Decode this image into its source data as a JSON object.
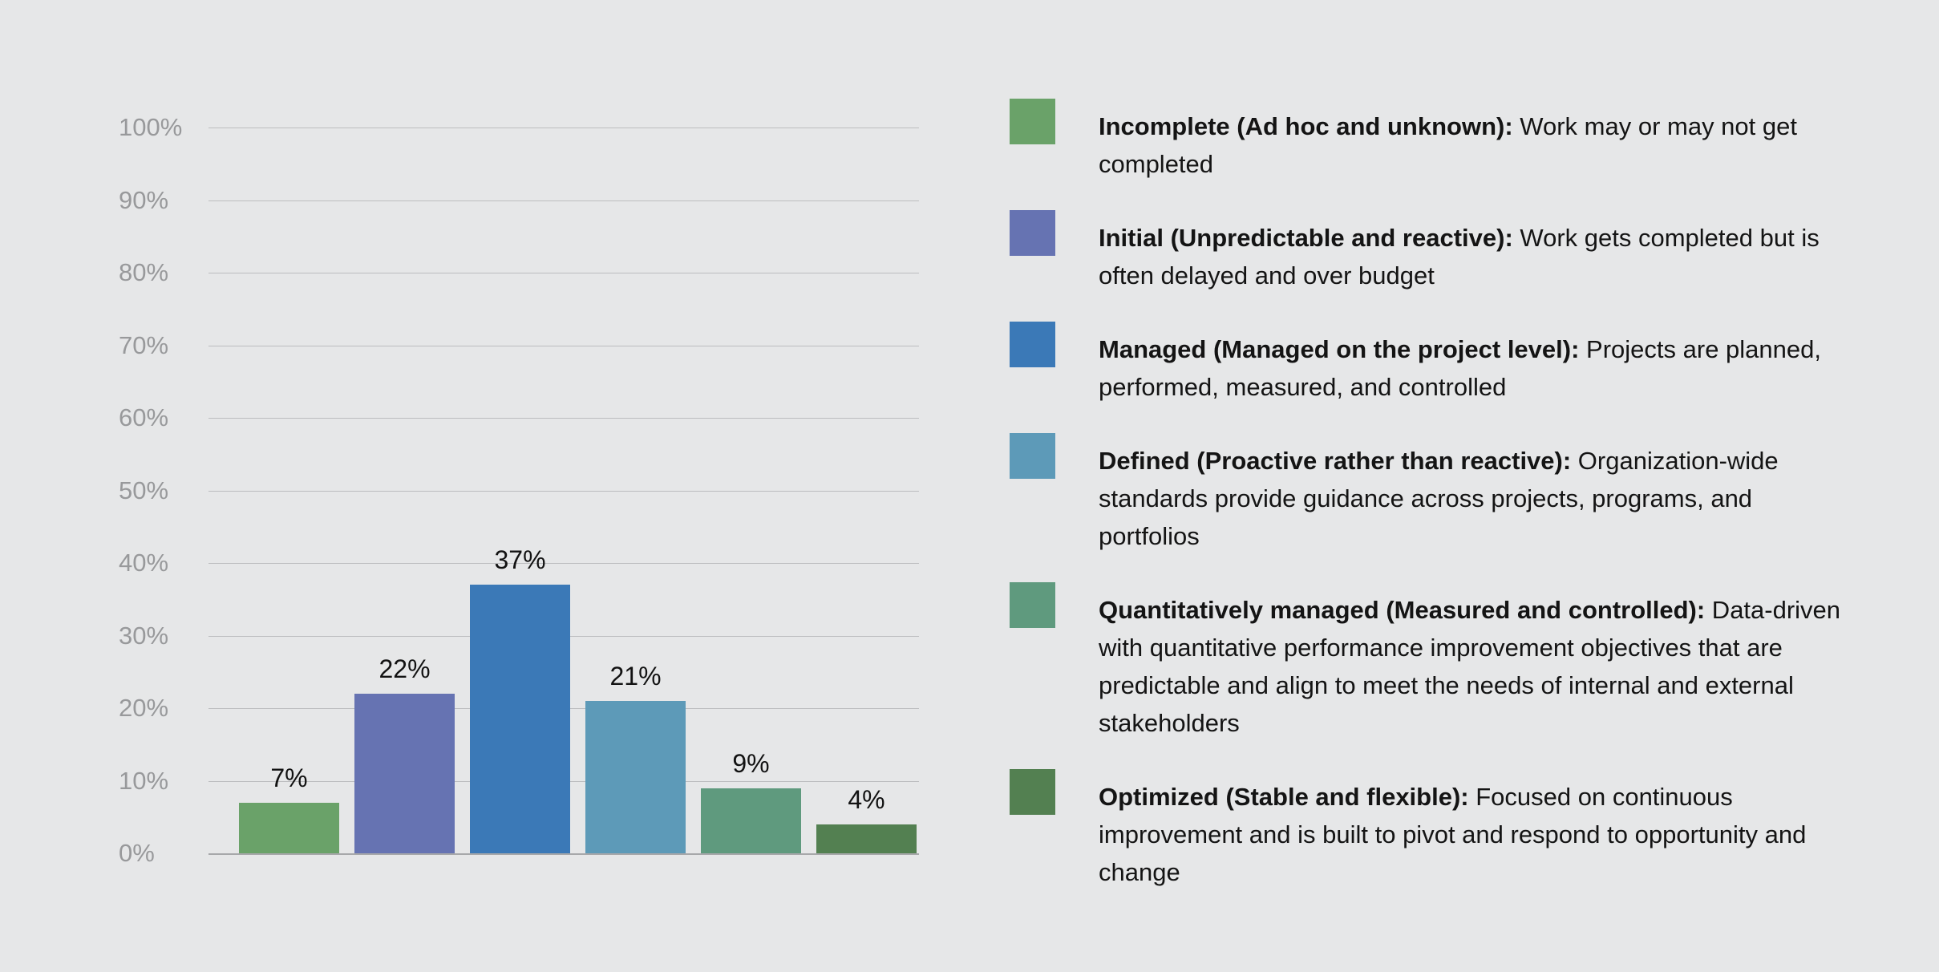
{
  "canvas": {
    "background": "#e6e7e8"
  },
  "chart_data": {
    "type": "bar",
    "categories": [
      "Incomplete",
      "Initial",
      "Managed",
      "Defined",
      "Quantitatively managed",
      "Optimized"
    ],
    "values": [
      7,
      22,
      37,
      21,
      9,
      4
    ],
    "value_labels": [
      "7%",
      "22%",
      "37%",
      "21%",
      "9%",
      "4%"
    ],
    "bar_colors": [
      "#6aa269",
      "#6673b2",
      "#3b79b7",
      "#5d9ab8",
      "#5f9a7e",
      "#538051"
    ],
    "y_ticks": [
      "100%",
      "90%",
      "80%",
      "70%",
      "60%",
      "50%",
      "40%",
      "30%",
      "20%",
      "10%",
      "0%"
    ],
    "ylim": [
      0,
      100
    ],
    "grid": true,
    "legend_position": "right"
  },
  "legend": {
    "items": [
      {
        "label": "Incomplete (Ad hoc and unknown):",
        "description": " Work may or may not get completed",
        "color": "#6aa269"
      },
      {
        "label": "Initial (Unpredictable and reactive):",
        "description": " Work gets completed but is often delayed and over budget",
        "color": "#6673b2"
      },
      {
        "label": "Managed (Managed on the project level):",
        "description": " Projects are planned, performed, measured, and controlled",
        "color": "#3b79b7"
      },
      {
        "label": "Defined (Proactive rather than reactive):",
        "description": " Organization-wide standards provide guidance across projects, programs, and portfolios",
        "color": "#5d9ab8"
      },
      {
        "label": "Quantitatively managed (Measured and controlled):",
        "description": " Data-driven with quantitative performance improvement objectives that are predictable and align to meet the needs of internal and external stakeholders",
        "color": "#5f9a7e"
      },
      {
        "label": "Optimized (Stable and flexible):",
        "description": " Focused on continuous improvement and is built to pivot and respond to opportunity and change",
        "color": "#538051"
      }
    ]
  }
}
